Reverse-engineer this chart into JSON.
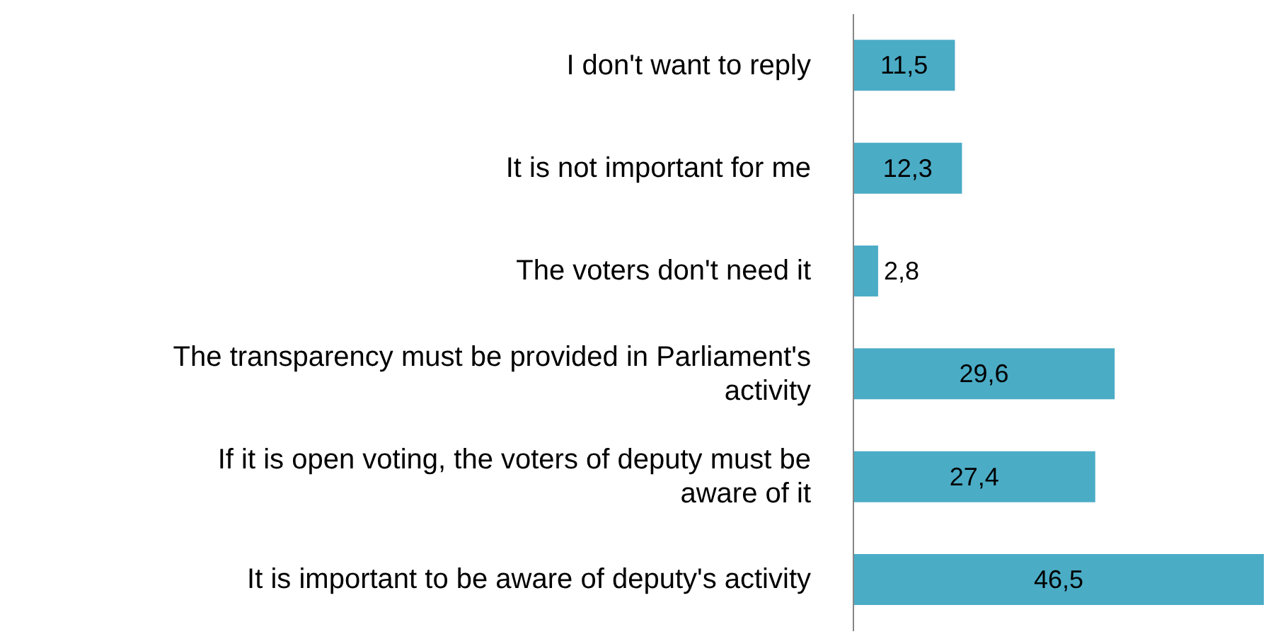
{
  "chart_data": {
    "type": "bar",
    "orientation": "horizontal",
    "categories": [
      "I don't want to reply",
      "It is not important for me",
      "The voters don't need it",
      "The transparency must be provided in Parliament's activity",
      "If it is open voting, the voters of deputy must be aware of it",
      "It is important to be aware of deputy's activity"
    ],
    "values": [
      11.5,
      12.3,
      2.8,
      29.6,
      27.4,
      46.5
    ],
    "value_labels": [
      "11,5",
      "12,3",
      "2,8",
      "29,6",
      "27,4",
      "46,5"
    ],
    "color": "#4bacc6"
  }
}
